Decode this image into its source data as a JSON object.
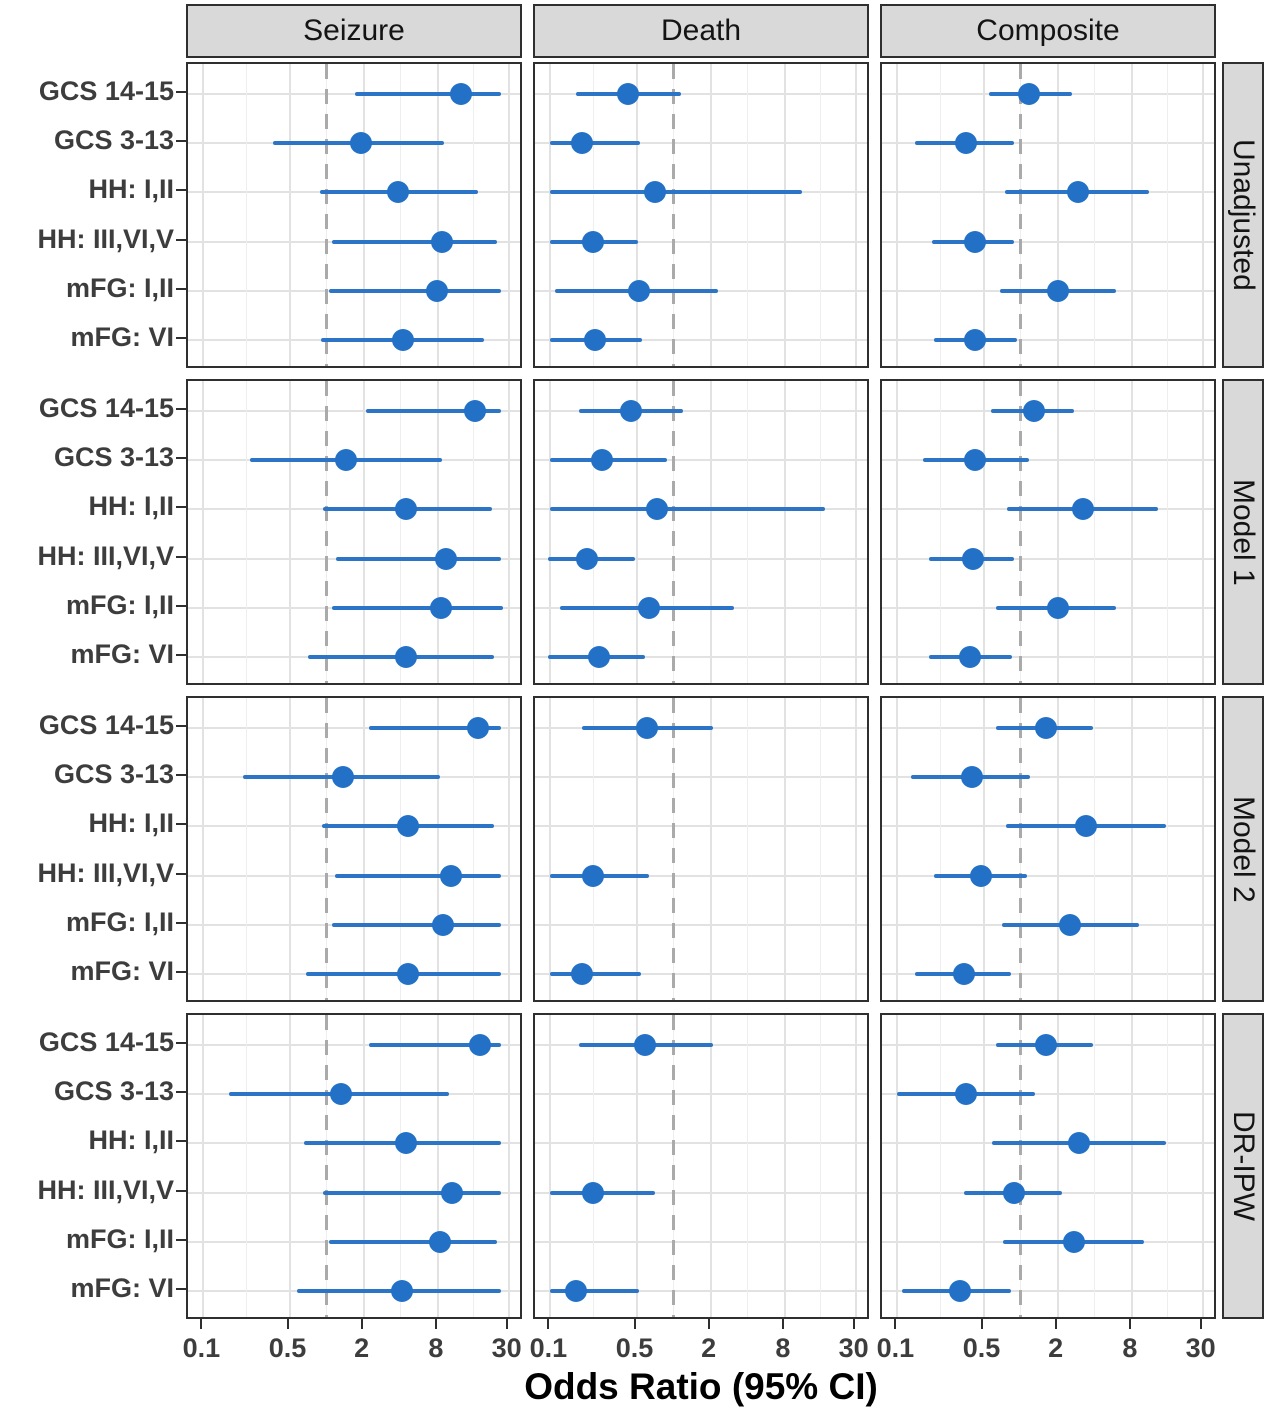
{
  "figure": {
    "x_axis_title": "Odds Ratio (95% CI)"
  },
  "colors": {
    "point_blue": "#2271c6",
    "ci_blue": "#2b74c6",
    "reference_line_gray": "#aaaaaa",
    "strip_background": "#d9d9d9",
    "panel_border": "#2f2f2f",
    "grid_major": "#e2e2e2",
    "grid_minor": "#eeeeee",
    "axis_text": "#3d3d3d",
    "strip_text": "#141414"
  },
  "chart_data": {
    "type": "scatter",
    "subtype": "forest-plot",
    "xlabel": "Odds Ratio (95% CI)",
    "x_scale": "log",
    "x_ticks": [
      0.1,
      0.5,
      2,
      8,
      30
    ],
    "x_tick_labels": [
      "0.1",
      "0.5",
      "2",
      "8",
      "30"
    ],
    "x_minor_gridlines": [
      0.224,
      1,
      4,
      15.5
    ],
    "x_domain": [
      0.075,
      40
    ],
    "reference_line": 1,
    "facet_columns": [
      "Seizure",
      "Death",
      "Composite"
    ],
    "facet_rows": [
      "Unadjusted",
      "Model 1",
      "Model 2",
      "DR-IPW"
    ],
    "categories": [
      "GCS 14-15",
      "GCS 3-13",
      "HH: I,II",
      "HH: III,VI,V",
      "mFG: I,II",
      "mFG: VI"
    ],
    "estimate_format": "[odds_ratio, ci_low, ci_high] per category; null = not shown",
    "panels": [
      {
        "row": "Unadjusted",
        "column": "Seizure",
        "values": [
          [
            12.4,
            1.7,
            26
          ],
          [
            1.9,
            0.37,
            8.9
          ],
          [
            3.8,
            0.88,
            17
          ],
          [
            8.6,
            1.1,
            24
          ],
          [
            7.8,
            1.05,
            26
          ],
          [
            4.2,
            0.9,
            19
          ]
        ]
      },
      {
        "row": "Unadjusted",
        "column": "Death",
        "values": [
          [
            0.43,
            0.16,
            1.15
          ],
          [
            0.18,
            0.1,
            0.53
          ],
          [
            0.7,
            0.1,
            11
          ],
          [
            0.22,
            0.1,
            0.51
          ],
          [
            0.52,
            0.11,
            2.3
          ],
          [
            0.23,
            0.1,
            0.55
          ]
        ]
      },
      {
        "row": "Unadjusted",
        "column": "Composite",
        "values": [
          [
            1.17,
            0.55,
            2.6
          ],
          [
            0.36,
            0.14,
            0.88
          ],
          [
            2.9,
            0.75,
            11
          ],
          [
            0.43,
            0.19,
            0.88
          ],
          [
            2.0,
            0.68,
            5.9
          ],
          [
            0.43,
            0.2,
            0.94
          ]
        ]
      },
      {
        "row": "Model 1",
        "column": "Seizure",
        "values": [
          [
            15.9,
            2.1,
            26
          ],
          [
            1.45,
            0.24,
            8.6
          ],
          [
            4.4,
            0.94,
            22
          ],
          [
            9.3,
            1.2,
            26
          ],
          [
            8.5,
            1.1,
            27
          ],
          [
            4.4,
            0.7,
            23
          ]
        ]
      },
      {
        "row": "Model 1",
        "column": "Death",
        "values": [
          [
            0.45,
            0.17,
            1.2
          ],
          [
            0.26,
            0.1,
            0.88
          ],
          [
            0.73,
            0.1,
            17
          ],
          [
            0.2,
            0.095,
            0.49
          ],
          [
            0.63,
            0.12,
            3.1
          ],
          [
            0.25,
            0.095,
            0.59
          ]
        ]
      },
      {
        "row": "Model 1",
        "column": "Composite",
        "values": [
          [
            1.28,
            0.57,
            2.7
          ],
          [
            0.43,
            0.16,
            1.17
          ],
          [
            3.2,
            0.78,
            13
          ],
          [
            0.41,
            0.18,
            0.88
          ],
          [
            2.0,
            0.63,
            5.9
          ],
          [
            0.39,
            0.18,
            0.85
          ]
        ]
      },
      {
        "row": "Model 2",
        "column": "Seizure",
        "values": [
          [
            16.9,
            2.2,
            26
          ],
          [
            1.35,
            0.21,
            8.4
          ],
          [
            4.6,
            0.91,
            23
          ],
          [
            10.2,
            1.18,
            26
          ],
          [
            8.8,
            1.1,
            26
          ],
          [
            4.6,
            0.68,
            26
          ]
        ]
      },
      {
        "row": "Model 2",
        "column": "Death",
        "values": [
          [
            0.61,
            0.18,
            2.1
          ],
          null,
          null,
          [
            0.22,
            0.1,
            0.63
          ],
          null,
          [
            0.18,
            0.1,
            0.54
          ]
        ]
      },
      {
        "row": "Model 2",
        "column": "Composite",
        "values": [
          [
            1.6,
            0.63,
            3.9
          ],
          [
            0.4,
            0.13,
            1.2
          ],
          [
            3.4,
            0.76,
            15
          ],
          [
            0.48,
            0.2,
            1.12
          ],
          [
            2.5,
            0.7,
            9.1
          ],
          [
            0.35,
            0.14,
            0.83
          ]
        ]
      },
      {
        "row": "DR-IPW",
        "column": "Seizure",
        "values": [
          [
            17.6,
            2.2,
            26
          ],
          [
            1.3,
            0.16,
            9.9
          ],
          [
            4.4,
            0.65,
            26
          ],
          [
            10.5,
            0.93,
            26
          ],
          [
            8.4,
            1.05,
            24
          ],
          [
            4.1,
            0.58,
            26
          ]
        ]
      },
      {
        "row": "DR-IPW",
        "column": "Death",
        "values": [
          [
            0.59,
            0.17,
            2.1
          ],
          null,
          null,
          [
            0.22,
            0.1,
            0.7
          ],
          null,
          [
            0.16,
            0.1,
            0.52
          ]
        ]
      },
      {
        "row": "DR-IPW",
        "column": "Composite",
        "values": [
          [
            1.6,
            0.63,
            3.9
          ],
          [
            0.36,
            0.1,
            1.3
          ],
          [
            3.0,
            0.59,
            15
          ],
          [
            0.88,
            0.35,
            2.15
          ],
          [
            2.7,
            0.72,
            10
          ],
          [
            0.32,
            0.11,
            0.83
          ]
        ]
      }
    ]
  }
}
